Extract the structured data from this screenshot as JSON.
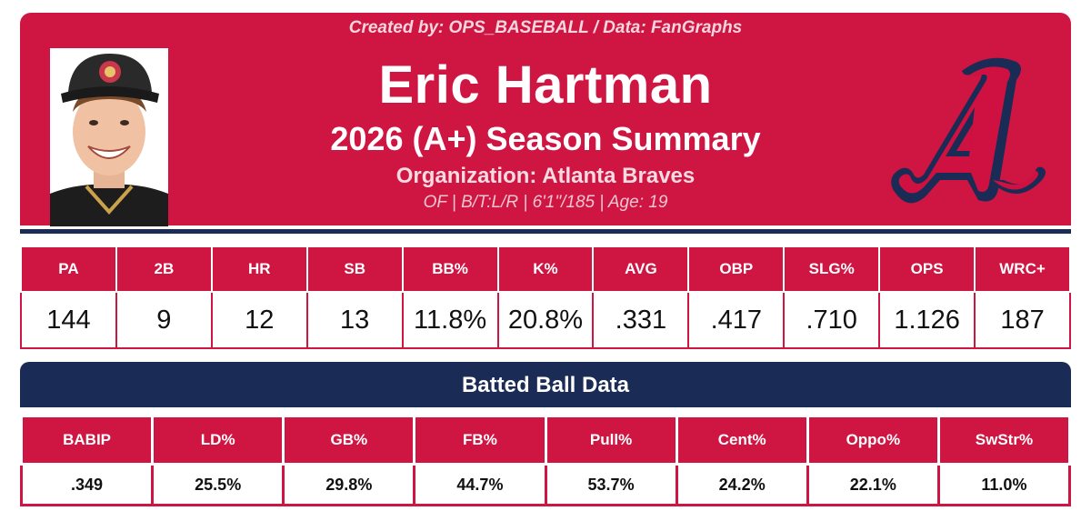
{
  "header": {
    "credit": "Created by: OPS_BASEBALL / Data: FanGraphs",
    "player_name": "Eric Hartman",
    "season_summary": "2026 (A+) Season Summary",
    "organization": "Organization: Atlanta Braves",
    "bio": "OF  |  B/T:L/R  |  6'1\"/185  |  Age: 19"
  },
  "colors": {
    "brand_red": "#cf1541",
    "brand_navy": "#1a2b55"
  },
  "stats": {
    "headers": [
      "PA",
      "2B",
      "HR",
      "SB",
      "BB%",
      "K%",
      "AVG",
      "OBP",
      "SLG%",
      "OPS",
      "WRC+"
    ],
    "values": [
      "144",
      "9",
      "12",
      "13",
      "11.8%",
      "20.8%",
      ".331",
      ".417",
      ".710",
      "1.126",
      "187"
    ]
  },
  "batted_ball": {
    "title": "Batted Ball Data",
    "headers": [
      "BABIP",
      "LD%",
      "GB%",
      "FB%",
      "Pull%",
      "Cent%",
      "Oppo%",
      "SwStr%"
    ],
    "values": [
      ".349",
      "25.5%",
      "29.8%",
      "44.7%",
      "53.7%",
      "24.2%",
      "22.1%",
      "11.0%"
    ]
  },
  "icons": {
    "photo": "player-headshot",
    "logo": "braves-a-logo"
  }
}
